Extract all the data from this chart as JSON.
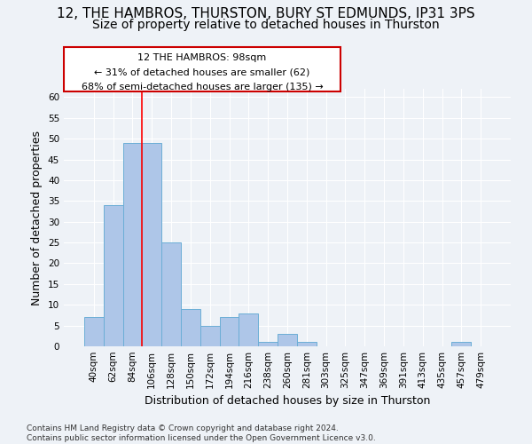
{
  "title1": "12, THE HAMBROS, THURSTON, BURY ST EDMUNDS, IP31 3PS",
  "title2": "Size of property relative to detached houses in Thurston",
  "xlabel": "Distribution of detached houses by size in Thurston",
  "ylabel": "Number of detached properties",
  "categories": [
    "40sqm",
    "62sqm",
    "84sqm",
    "106sqm",
    "128sqm",
    "150sqm",
    "172sqm",
    "194sqm",
    "216sqm",
    "238sqm",
    "260sqm",
    "281sqm",
    "303sqm",
    "325sqm",
    "347sqm",
    "369sqm",
    "391sqm",
    "413sqm",
    "435sqm",
    "457sqm",
    "479sqm"
  ],
  "values": [
    7,
    34,
    49,
    49,
    25,
    9,
    5,
    7,
    8,
    1,
    3,
    1,
    0,
    0,
    0,
    0,
    0,
    0,
    0,
    1,
    0
  ],
  "bar_color": "#aec6e8",
  "bar_edge_color": "#6baed6",
  "ylim": [
    0,
    62
  ],
  "yticks": [
    0,
    5,
    10,
    15,
    20,
    25,
    30,
    35,
    40,
    45,
    50,
    55,
    60
  ],
  "red_line_x": 2.5,
  "annotation_line1": "12 THE HAMBROS: 98sqm",
  "annotation_line2": "← 31% of detached houses are smaller (62)",
  "annotation_line3": "68% of semi-detached houses are larger (135) →",
  "annotation_box_color": "#ffffff",
  "annotation_box_edge": "#cc0000",
  "background_color": "#eef2f7",
  "footnote": "Contains HM Land Registry data © Crown copyright and database right 2024.\nContains public sector information licensed under the Open Government Licence v3.0.",
  "title_fontsize": 11,
  "subtitle_fontsize": 10,
  "ylabel_fontsize": 9,
  "xlabel_fontsize": 9,
  "tick_fontsize": 7.5,
  "annotation_fontsize": 8,
  "footnote_fontsize": 6.5
}
